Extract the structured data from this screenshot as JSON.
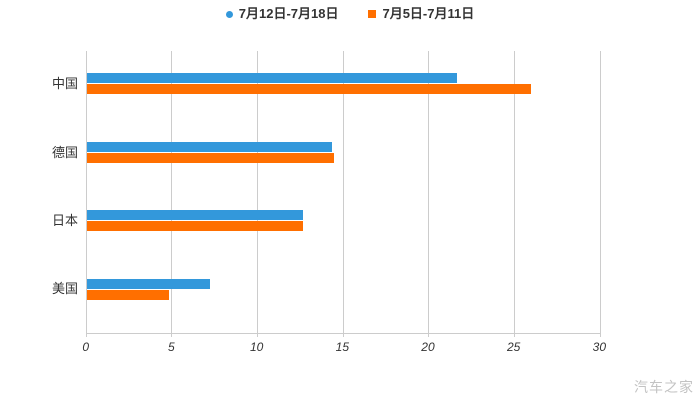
{
  "chart_data": {
    "type": "bar",
    "orientation": "horizontal",
    "title": "",
    "categories": [
      "中国",
      "德国",
      "日本",
      "美国"
    ],
    "series": [
      {
        "name": "7月12日-7月18日",
        "color": "#3398db",
        "marker": "circle",
        "values": [
          21.6,
          14.3,
          12.6,
          7.2
        ]
      },
      {
        "name": "7月5日-7月11日",
        "color": "#ff6f00",
        "marker": "square",
        "values": [
          25.9,
          14.4,
          12.6,
          4.8
        ]
      }
    ],
    "xlim": [
      0,
      30
    ],
    "x_ticks": [
      0,
      5,
      10,
      15,
      20,
      25,
      30
    ],
    "grid": true,
    "legend_position": "top-center"
  },
  "legend": {
    "items": [
      {
        "label": "7月12日-7月18日",
        "color": "#3398db",
        "shape": "circle"
      },
      {
        "label": "7月5日-7月11日",
        "color": "#ff6f00",
        "shape": "square"
      }
    ]
  },
  "watermark": "汽车之家",
  "colors": {
    "background": "#ffffff",
    "grid": "#cccccc",
    "axis": "#cccccc",
    "text": "#333333",
    "watermark": "#c3c3c3"
  }
}
